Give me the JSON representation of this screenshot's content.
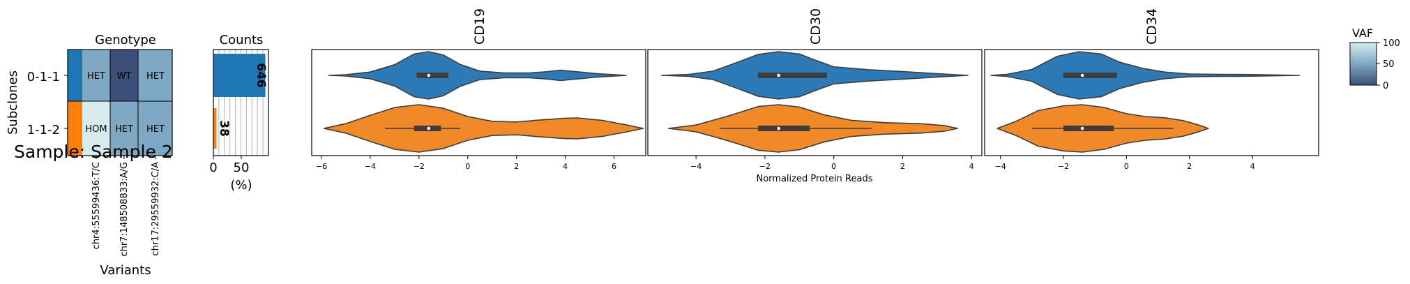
{
  "sample_label": "Sample: Sample 2",
  "heatmap": {
    "title": "Genotype",
    "ylabel": "Subclones",
    "xlabel": "Variants",
    "subclones": [
      "0-1-1",
      "1-1-2"
    ],
    "subclone_colors": [
      "#1f77b4",
      "#ff7f0e"
    ],
    "variants": [
      "chr4:55599436:T/C",
      "chr7:148508833:A/G",
      "chr17:29559932:C/A"
    ],
    "cells": [
      [
        "HET",
        "WT",
        "HET"
      ],
      [
        "HOM",
        "HET",
        "HET"
      ]
    ],
    "cell_colors": [
      [
        "#7ea8c3",
        "#3c4f78",
        "#7ea8c3"
      ],
      [
        "#d6ecef",
        "#7ea8c3",
        "#7ea8c3"
      ]
    ],
    "cell_text_colors": [
      [
        "#000000",
        "#ffffff",
        "#000000"
      ],
      [
        "#000000",
        "#000000",
        "#000000"
      ]
    ]
  },
  "counts": {
    "title": "Counts",
    "xlabel": "(%)",
    "xticks": [
      "0",
      "50"
    ],
    "xlim": [
      0,
      100
    ],
    "rows": [
      {
        "percent": 94.4,
        "count": "646",
        "color": "#1f77b4"
      },
      {
        "percent": 5.6,
        "count": "38",
        "color": "#ff7f0e"
      }
    ]
  },
  "violins": {
    "xlabel": "Normalized Protein Reads",
    "series_colors": [
      "#2e7ab6",
      "#f08a29"
    ],
    "panels": [
      {
        "title": "CD19",
        "xlim": [
          -6.4,
          7.3
        ],
        "xticks": [
          -6,
          -4,
          -2,
          0,
          2,
          4,
          6
        ],
        "xtick_labels": [
          "−6",
          "−4",
          "−2",
          "0",
          "2",
          "4",
          "6"
        ],
        "violins": [
          {
            "range": [
              -5.7,
              6.5
            ],
            "median": -1.6,
            "q1": -2.1,
            "q3": -0.8,
            "wlo": -2.1,
            "whi": -0.8,
            "shape": [
              [
                -5.7,
                0
              ],
              [
                -5,
                0.03
              ],
              [
                -4,
                0.14
              ],
              [
                -3,
                0.45
              ],
              [
                -2.2,
                0.9
              ],
              [
                -1.6,
                1.0
              ],
              [
                -1,
                0.86
              ],
              [
                -0.3,
                0.46
              ],
              [
                0.5,
                0.18
              ],
              [
                1.5,
                0.1
              ],
              [
                2.5,
                0.1
              ],
              [
                3.2,
                0.15
              ],
              [
                3.8,
                0.22
              ],
              [
                4.4,
                0.16
              ],
              [
                5.3,
                0.07
              ],
              [
                6.5,
                0
              ]
            ]
          },
          {
            "range": [
              -5.9,
              7.2
            ],
            "median": -1.6,
            "q1": -2.2,
            "q3": -1.1,
            "wlo": -3.4,
            "whi": -0.3,
            "shape": [
              [
                -5.9,
                0
              ],
              [
                -5,
                0.2
              ],
              [
                -4,
                0.55
              ],
              [
                -3,
                0.88
              ],
              [
                -2,
                1.0
              ],
              [
                -1,
                0.85
              ],
              [
                0,
                0.5
              ],
              [
                1,
                0.3
              ],
              [
                2,
                0.27
              ],
              [
                3,
                0.36
              ],
              [
                4,
                0.43
              ],
              [
                4.5,
                0.44
              ],
              [
                5.5,
                0.34
              ],
              [
                6.5,
                0.15
              ],
              [
                7.2,
                0
              ]
            ]
          }
        ]
      },
      {
        "title": "CD30",
        "xlim": [
          -5.4,
          4.3
        ],
        "xticks": [
          -4,
          -2,
          0,
          2,
          4
        ],
        "xtick_labels": [
          "−4",
          "−2",
          "0",
          "2",
          "4"
        ],
        "violins": [
          {
            "range": [
              -5.0,
              3.9
            ],
            "median": -1.6,
            "q1": -2.2,
            "q3": -0.2,
            "wlo": -2.2,
            "whi": -0.2,
            "shape": [
              [
                -5,
                0
              ],
              [
                -4.2,
                0.04
              ],
              [
                -3.5,
                0.18
              ],
              [
                -2.8,
                0.55
              ],
              [
                -2.2,
                0.88
              ],
              [
                -1.6,
                1.0
              ],
              [
                -1,
                0.9
              ],
              [
                -0.5,
                0.62
              ],
              [
                0,
                0.36
              ],
              [
                1,
                0.24
              ],
              [
                2,
                0.16
              ],
              [
                3,
                0.07
              ],
              [
                3.9,
                0
              ]
            ]
          },
          {
            "range": [
              -4.8,
              3.6
            ],
            "median": -1.6,
            "q1": -2.2,
            "q3": -0.7,
            "wlo": -3.3,
            "whi": 1.1,
            "shape": [
              [
                -4.8,
                0
              ],
              [
                -4,
                0.14
              ],
              [
                -3,
                0.55
              ],
              [
                -2.2,
                0.92
              ],
              [
                -1.6,
                1.0
              ],
              [
                -1,
                0.9
              ],
              [
                -0.3,
                0.58
              ],
              [
                0.5,
                0.34
              ],
              [
                1.5,
                0.24
              ],
              [
                2.5,
                0.2
              ],
              [
                3.2,
                0.12
              ],
              [
                3.6,
                0
              ]
            ]
          }
        ]
      },
      {
        "title": "CD34",
        "xlim": [
          -4.5,
          6.1
        ],
        "xticks": [
          -4,
          -2,
          0,
          2,
          4
        ],
        "xtick_labels": [
          "−4",
          "−2",
          "0",
          "2",
          "4"
        ],
        "violins": [
          {
            "range": [
              -4.3,
              5.5
            ],
            "median": -1.4,
            "q1": -2.0,
            "q3": -0.3,
            "wlo": -2.0,
            "whi": -0.3,
            "shape": [
              [
                -4.3,
                0
              ],
              [
                -3.8,
                0.04
              ],
              [
                -3,
                0.25
              ],
              [
                -2.2,
                0.8
              ],
              [
                -1.5,
                1.0
              ],
              [
                -0.8,
                0.9
              ],
              [
                -0.2,
                0.55
              ],
              [
                0.5,
                0.3
              ],
              [
                1.2,
                0.14
              ],
              [
                2,
                0.06
              ],
              [
                3,
                0.04
              ],
              [
                4,
                0.035
              ],
              [
                5.5,
                0
              ]
            ]
          },
          {
            "range": [
              -4.1,
              2.6
            ],
            "median": -1.4,
            "q1": -2.0,
            "q3": -0.4,
            "wlo": -3.0,
            "whi": 1.5,
            "shape": [
              [
                -4.1,
                0
              ],
              [
                -3.5,
                0.3
              ],
              [
                -2.8,
                0.75
              ],
              [
                -2,
                0.95
              ],
              [
                -1.4,
                1.0
              ],
              [
                -0.7,
                0.88
              ],
              [
                0,
                0.62
              ],
              [
                0.6,
                0.5
              ],
              [
                1.2,
                0.45
              ],
              [
                1.8,
                0.33
              ],
              [
                2.3,
                0.14
              ],
              [
                2.6,
                0
              ]
            ]
          }
        ]
      }
    ]
  },
  "colorbar": {
    "title": "VAF",
    "ticks": [
      "100",
      "50",
      "0"
    ],
    "top_color": "#d6ecef",
    "mid_color": "#7ea8c3",
    "bottom_color": "#3c4f78"
  }
}
